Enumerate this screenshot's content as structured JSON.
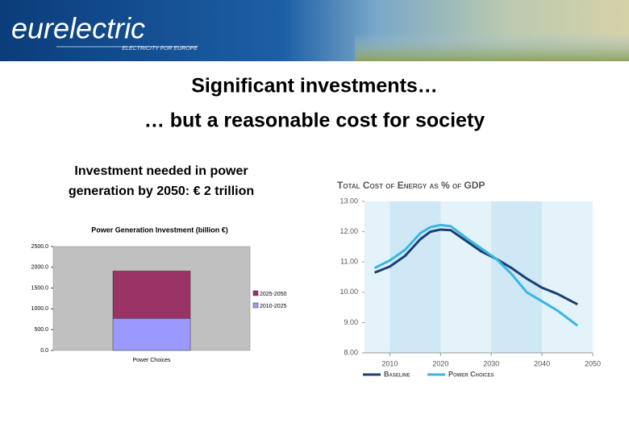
{
  "header": {
    "logo": "eurelectric",
    "tagline": "ELECTRICITY FOR EUROPE"
  },
  "title": [
    "Significant investments…",
    "… but a reasonable cost for society"
  ],
  "left_caption": [
    "Investment needed in power",
    "generation by 2050: € 2 trillion"
  ],
  "chart_data": [
    {
      "type": "bar",
      "stacked": true,
      "title": "Power Generation Investment (billion €)",
      "categories": [
        "Power Choices"
      ],
      "series": [
        {
          "name": "2010-2025",
          "color": "#9999ff",
          "values": [
            770
          ]
        },
        {
          "name": "2025-2050",
          "color": "#993366",
          "values": [
            1140
          ]
        }
      ],
      "ylim": [
        0,
        2500
      ],
      "yticks": [
        {
          "value": 0,
          "label": "0.0"
        },
        {
          "value": 500,
          "label": "500.0"
        },
        {
          "value": 1000,
          "label": "1000.0"
        },
        {
          "value": 1500,
          "label": "1500.0"
        },
        {
          "value": 2000,
          "label": "2000.0"
        },
        {
          "value": 2500,
          "label": "2500.0"
        }
      ],
      "grid": false,
      "plot_color": "#c0c0c0"
    },
    {
      "type": "line",
      "title": "Total Cost of Energy as % of GDP",
      "x": [
        2007,
        2010,
        2013,
        2016,
        2018,
        2020,
        2022,
        2025,
        2028,
        2031,
        2034,
        2037,
        2040,
        2043,
        2047
      ],
      "series": [
        {
          "name": "Baseline",
          "color": "#1b3f73",
          "values": [
            10.65,
            10.85,
            11.2,
            11.75,
            12.0,
            12.07,
            12.05,
            11.7,
            11.35,
            11.1,
            10.8,
            10.45,
            10.15,
            9.95,
            9.6
          ]
        },
        {
          "name": "Power Choices",
          "color": "#38b6e3",
          "values": [
            10.8,
            11.05,
            11.4,
            11.95,
            12.15,
            12.22,
            12.18,
            11.8,
            11.45,
            11.1,
            10.6,
            10.0,
            9.7,
            9.4,
            8.9
          ]
        }
      ],
      "xlim": [
        2005,
        2050
      ],
      "xticks": [
        2010,
        2020,
        2030,
        2040,
        2050
      ],
      "ylim": [
        8,
        13
      ],
      "yticks": [
        {
          "value": 8,
          "label": "8.00"
        },
        {
          "value": 9,
          "label": "9.00"
        },
        {
          "value": 10,
          "label": "10.00"
        },
        {
          "value": 11,
          "label": "11.00"
        },
        {
          "value": 12,
          "label": "12.00"
        },
        {
          "value": 13,
          "label": "13.00"
        }
      ],
      "grid": false
    }
  ]
}
